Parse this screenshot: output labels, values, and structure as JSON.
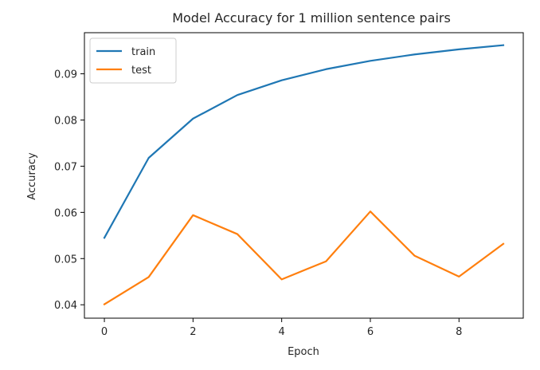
{
  "chart_data": {
    "type": "line",
    "title": "Model Accuracy for 1 million sentence pairs",
    "xlabel": "Epoch",
    "ylabel": "Accuracy",
    "x": [
      0,
      1,
      2,
      3,
      4,
      5,
      6,
      7,
      8,
      9
    ],
    "xlim": [
      -0.45,
      9.45
    ],
    "ylim": [
      0.0371,
      0.0989
    ],
    "xticks": [
      0,
      2,
      4,
      6,
      8
    ],
    "xtick_labels": [
      "0",
      "2",
      "4",
      "6",
      "8"
    ],
    "yticks": [
      0.04,
      0.05,
      0.06,
      0.07,
      0.08,
      0.09
    ],
    "ytick_labels": [
      "0.04",
      "0.05",
      "0.06",
      "0.07",
      "0.08",
      "0.09"
    ],
    "grid": false,
    "legend_position": "upper-left",
    "series": [
      {
        "name": "train",
        "color": "#1f77b4",
        "values": [
          0.0545,
          0.0718,
          0.0803,
          0.0854,
          0.0886,
          0.091,
          0.0928,
          0.0942,
          0.0953,
          0.0962
        ]
      },
      {
        "name": "test",
        "color": "#ff7f0e",
        "values": [
          0.0401,
          0.046,
          0.0594,
          0.0553,
          0.0455,
          0.0494,
          0.0602,
          0.0506,
          0.0461,
          0.0532
        ]
      }
    ]
  }
}
